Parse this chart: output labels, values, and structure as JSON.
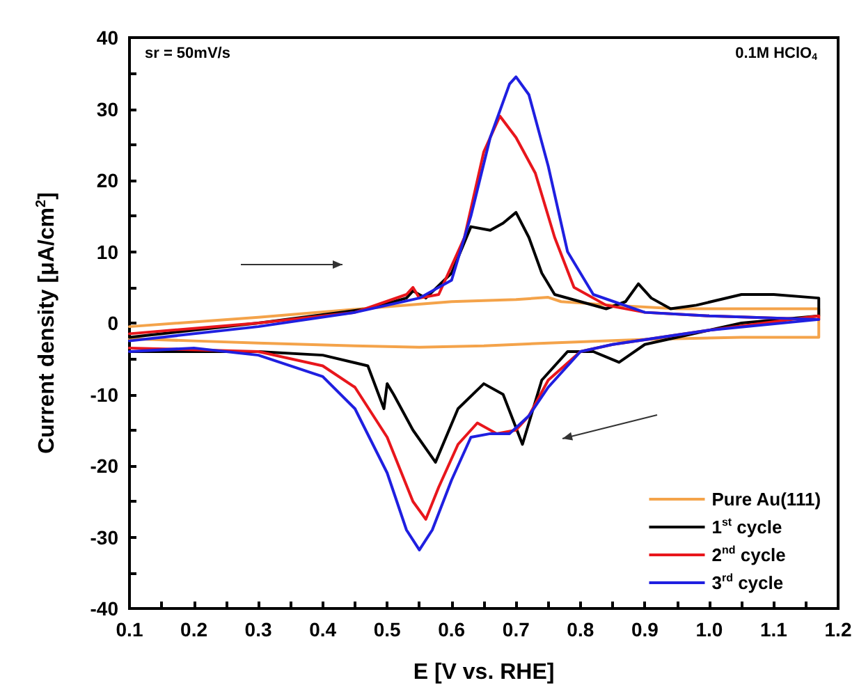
{
  "chart_data": {
    "type": "line",
    "xlabel": "E [V vs. RHE]",
    "ylabel": "Current density [μA/cm$^{2}$]",
    "annotations": [
      "sr = 50mV/s",
      "0.1M HClO$_{4}$"
    ],
    "xlim": [
      0.1,
      1.2
    ],
    "ylim": [
      -40,
      40
    ],
    "xticks": [
      0.1,
      0.2,
      0.3,
      0.4,
      0.5,
      0.6,
      0.7,
      0.8,
      0.9,
      {
        "value": 1,
        "label": "1.0"
      },
      1.1,
      1.2
    ],
    "yticks": [
      -40,
      -30,
      -20,
      -10,
      0,
      10,
      20,
      30,
      40
    ],
    "grid": false,
    "legend": "bottom right",
    "marker": "none",
    "line_style": "solid",
    "series": [
      {
        "name": "Pure Au(111)",
        "color": "#f4a34a",
        "x": [
          0.1,
          0.3,
          0.5,
          0.6,
          0.7,
          0.75,
          0.77,
          0.85,
          0.95,
          1.05,
          1.17,
          1.17,
          1.05,
          0.9,
          0.75,
          0.65,
          0.55,
          0.45,
          0.3,
          0.2,
          0.1
        ],
        "values": [
          -0.5,
          0.8,
          2.3,
          3,
          3.3,
          3.6,
          3,
          2.5,
          2,
          2,
          2,
          -2,
          -2,
          -2.3,
          -2.8,
          -3.2,
          -3.4,
          -3.2,
          -2.8,
          -2.5,
          -2.2
        ]
      },
      {
        "name": "1$^{st}$ cycle",
        "color": "#000000",
        "x": [
          0.1,
          0.3,
          0.47,
          0.53,
          0.54,
          0.56,
          0.6,
          0.63,
          0.66,
          0.68,
          0.7,
          0.72,
          0.74,
          0.76,
          0.8,
          0.84,
          0.87,
          0.89,
          0.91,
          0.94,
          0.98,
          1.05,
          1.1,
          1.17,
          1.17,
          1.05,
          0.95,
          0.9,
          0.86,
          0.82,
          0.78,
          0.74,
          0.72,
          0.71,
          0.68,
          0.65,
          0.61,
          0.575,
          0.54,
          0.51,
          0.5,
          0.495,
          0.47,
          0.4,
          0.3,
          0.1
        ],
        "values": [
          -2,
          0,
          2,
          3.5,
          4.5,
          3.5,
          7,
          13.5,
          13,
          14,
          15.5,
          12,
          7,
          4,
          3,
          2,
          3,
          5.5,
          3.5,
          2,
          2.5,
          4,
          4,
          3.5,
          1,
          0,
          -2,
          -3,
          -5.5,
          -4,
          -4,
          -8,
          -14,
          -17,
          -10,
          -8.5,
          -12,
          -19.5,
          -15,
          -10,
          -8.5,
          -12,
          -6,
          -4.5,
          -4,
          -4
        ]
      },
      {
        "name": "2$^{nd}$ cycle",
        "color": "#e8161c",
        "x": [
          0.1,
          0.3,
          0.45,
          0.53,
          0.54,
          0.55,
          0.58,
          0.62,
          0.65,
          0.675,
          0.7,
          0.73,
          0.76,
          0.79,
          0.84,
          0.9,
          1.0,
          1.17,
          1.17,
          1.0,
          0.85,
          0.8,
          0.75,
          0.72,
          0.7,
          0.67,
          0.64,
          0.61,
          0.58,
          0.56,
          0.54,
          0.5,
          0.45,
          0.4,
          0.3,
          0.1
        ],
        "values": [
          -1.5,
          0,
          1.5,
          4,
          5,
          3.5,
          4,
          12,
          24,
          29,
          26,
          21,
          12,
          5,
          2.5,
          1.5,
          1,
          0.5,
          1,
          -1,
          -3,
          -4,
          -8,
          -13,
          -15,
          -15.5,
          -14,
          -17,
          -23,
          -27.5,
          -25,
          -16,
          -9,
          -6,
          -4,
          -3.5
        ]
      },
      {
        "name": "3$^{rd}$ cycle",
        "color": "#1f1fe0",
        "x": [
          0.1,
          0.3,
          0.45,
          0.55,
          0.6,
          0.63,
          0.66,
          0.69,
          0.7,
          0.72,
          0.75,
          0.78,
          0.82,
          0.9,
          1.0,
          1.17,
          1.17,
          1.0,
          0.85,
          0.8,
          0.75,
          0.72,
          0.69,
          0.66,
          0.63,
          0.6,
          0.57,
          0.55,
          0.53,
          0.5,
          0.45,
          0.4,
          0.3,
          0.2,
          0.1
        ],
        "values": [
          -2.5,
          -0.5,
          1.5,
          3.5,
          6,
          15,
          26,
          33.5,
          34.5,
          32,
          22,
          10,
          4,
          1.5,
          1,
          0.5,
          0.5,
          -1,
          -3,
          -4,
          -9,
          -13,
          -15.5,
          -15.5,
          -16,
          -22,
          -29,
          -31.8,
          -29,
          -21,
          -12,
          -7.5,
          -4.5,
          -3.5,
          -4
        ]
      }
    ]
  }
}
